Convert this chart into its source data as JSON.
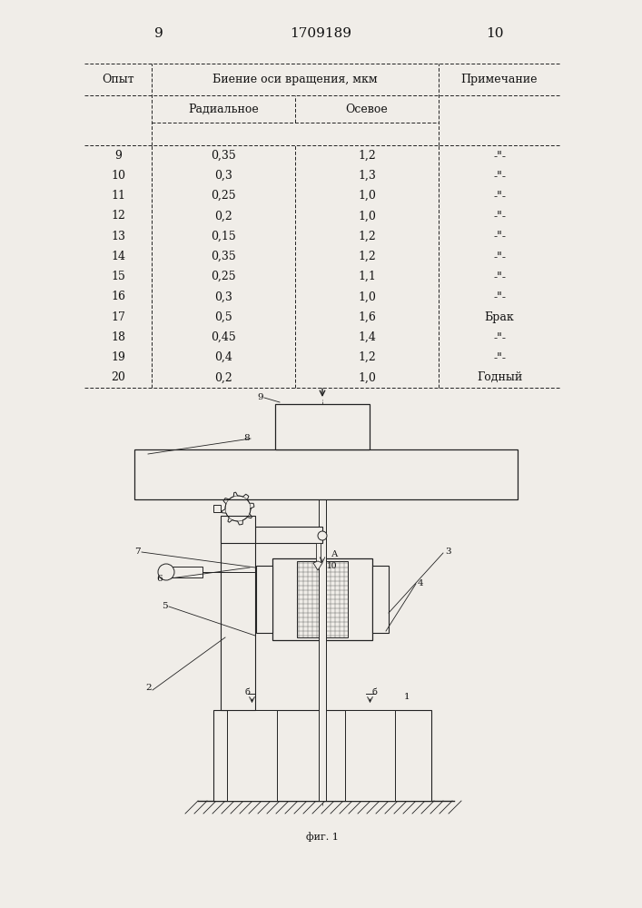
{
  "page_left": "9",
  "page_center": "1709189",
  "page_right": "10",
  "table_headers": [
    "Опыт",
    "Биение оси вращения, мкм",
    "Примечание"
  ],
  "table_subheaders": [
    "Радиальное",
    "Осевое"
  ],
  "table_data": [
    [
      "9",
      "0,35",
      "1,2",
      "-„“-"
    ],
    [
      "10",
      "0,3",
      "1,3",
      "-„“-"
    ],
    [
      "11",
      "0,25",
      "1,0",
      "-„“-"
    ],
    [
      "12",
      "0,2",
      "1,0",
      "-„“-"
    ],
    [
      "13",
      "0,15",
      "1,2",
      "-„“-"
    ],
    [
      "14",
      "0,35",
      "1,2",
      "-„“-"
    ],
    [
      "15",
      "0,25",
      "1,1",
      "-„“-"
    ],
    [
      "16",
      "0,3",
      "1,0",
      "-„“-"
    ],
    [
      "17",
      "0,5",
      "1,6",
      "Брак"
    ],
    [
      "18",
      "0,45",
      "1,4",
      "-„“-"
    ],
    [
      "19",
      "0,4",
      "1,2",
      "-„“-"
    ],
    [
      "20",
      "0,2",
      "1,0",
      "Годный"
    ]
  ],
  "note_symbol": "-\"-",
  "fig_caption": "фиг. 1",
  "background_color": "#f0ede8",
  "text_color": "#111111",
  "line_color": "#222222"
}
